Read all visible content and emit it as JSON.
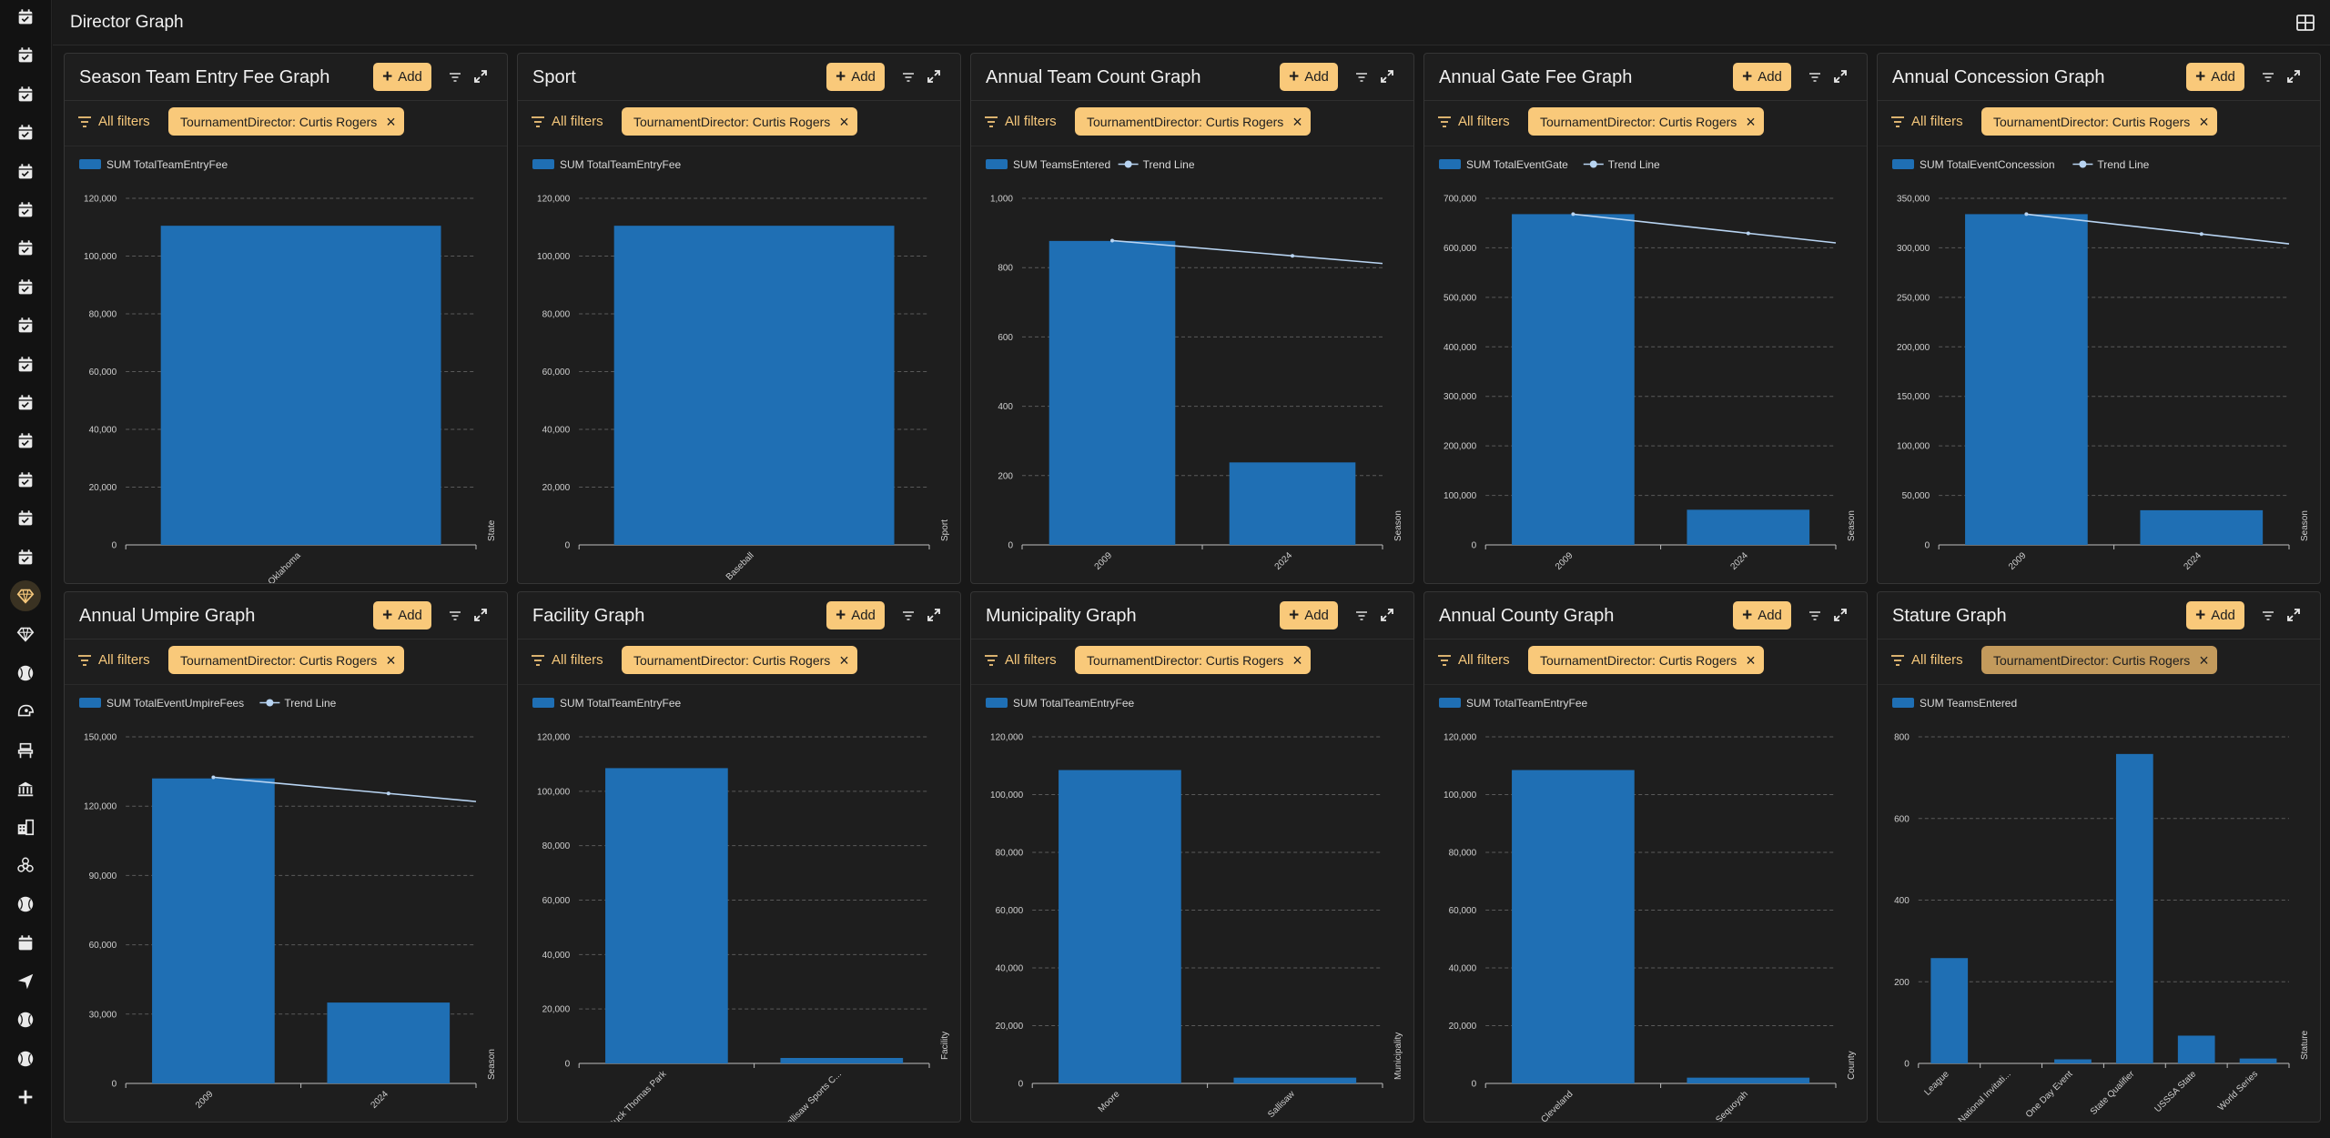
{
  "topbar": {
    "title": "Director Graph"
  },
  "common": {
    "add_label": "Add",
    "all_filters_label": "All filters"
  },
  "colors": {
    "bar": "#1f6fb4",
    "trend": "#b8d4f2",
    "accent": "#f9c97a",
    "background": "#181818"
  },
  "sidebar": {
    "icons": [
      "calendar-check-icon",
      "calendar-check-icon",
      "calendar-check-icon",
      "calendar-check-icon",
      "calendar-check-icon",
      "calendar-check-icon",
      "calendar-check-icon",
      "calendar-check-icon",
      "calendar-check-icon",
      "calendar-check-icon",
      "calendar-check-icon",
      "calendar-check-icon",
      "calendar-check-icon",
      "calendar-check-icon",
      "calendar-check-icon",
      "diamond-icon",
      "diamond-icon",
      "baseball-icon",
      "helmet-icon",
      "stadium-seat-icon",
      "bank-icon",
      "building-icon",
      "biohazard-icon",
      "baseball-icon",
      "calendar-icon",
      "send-icon",
      "baseball-icon",
      "baseball-icon",
      "plus-icon"
    ]
  },
  "panels": [
    {
      "title": "Season Team Entry Fee Graph",
      "filter": "TournamentDirector: Curtis Rogers",
      "chart_data": {
        "type": "bar",
        "categories": [
          "Oklahoma"
        ],
        "series": [
          {
            "name": "SUM TotalTeamEntryFee",
            "values": [
              110500
            ]
          }
        ],
        "xlabel": "State",
        "ylim": [
          0,
          120000
        ],
        "yticks": [
          "0",
          "20,000",
          "40,000",
          "60,000",
          "80,000",
          "100,000",
          "120,000"
        ],
        "trend": null
      }
    },
    {
      "title": "Sport",
      "filter": "TournamentDirector: Curtis Rogers",
      "chart_data": {
        "type": "bar",
        "categories": [
          "Baseball"
        ],
        "series": [
          {
            "name": "SUM TotalTeamEntryFee",
            "values": [
              110500
            ]
          }
        ],
        "xlabel": "Sport",
        "ylim": [
          0,
          120000
        ],
        "yticks": [
          "0",
          "20,000",
          "40,000",
          "60,000",
          "80,000",
          "100,000",
          "120,000"
        ],
        "trend": null
      }
    },
    {
      "title": "Annual Team Count Graph",
      "filter": "TournamentDirector: Curtis Rogers",
      "chart_data": {
        "type": "bar",
        "categories": [
          "2009",
          "2024"
        ],
        "series": [
          {
            "name": "SUM TeamsEntered",
            "values": [
              877,
              238
            ]
          }
        ],
        "xlabel": "Season",
        "ylim": [
          0,
          1000
        ],
        "yticks": [
          "0",
          "200",
          "400",
          "600",
          "800",
          "1,000"
        ],
        "trend": {
          "name": "Trend Line",
          "start": 878,
          "end": 812
        }
      }
    },
    {
      "title": "Annual Gate Fee Graph",
      "filter": "TournamentDirector: Curtis Rogers",
      "chart_data": {
        "type": "bar",
        "categories": [
          "2009",
          "2024"
        ],
        "series": [
          {
            "name": "SUM TotalEventGate",
            "values": [
              668000,
              71000
            ]
          }
        ],
        "xlabel": "Season",
        "ylim": [
          0,
          700000
        ],
        "yticks": [
          "0",
          "100,000",
          "200,000",
          "300,000",
          "400,000",
          "500,000",
          "600,000",
          "700,000"
        ],
        "trend": {
          "name": "Trend Line",
          "start": 668000,
          "end": 610000
        }
      }
    },
    {
      "title": "Annual Concession Graph",
      "filter": "TournamentDirector: Curtis Rogers",
      "chart_data": {
        "type": "bar",
        "categories": [
          "2009",
          "2024"
        ],
        "series": [
          {
            "name": "SUM TotalEventConcession",
            "values": [
              334000,
              35000
            ]
          }
        ],
        "xlabel": "Season",
        "ylim": [
          0,
          350000
        ],
        "yticks": [
          "0",
          "50,000",
          "100,000",
          "150,000",
          "200,000",
          "250,000",
          "300,000",
          "350,000"
        ],
        "trend": {
          "name": "Trend Line",
          "start": 334000,
          "end": 304000
        }
      }
    },
    {
      "title": "Annual Umpire Graph",
      "filter": "TournamentDirector: Curtis Rogers",
      "chart_data": {
        "type": "bar",
        "categories": [
          "2009",
          "2024"
        ],
        "series": [
          {
            "name": "SUM TotalEventUmpireFees",
            "values": [
              132000,
              35000
            ]
          }
        ],
        "xlabel": "Season",
        "ylim": [
          0,
          150000
        ],
        "yticks": [
          "0",
          "30,000",
          "60,000",
          "90,000",
          "120,000",
          "150,000"
        ],
        "trend": {
          "name": "Trend Line",
          "start": 132500,
          "end": 122000
        }
      }
    },
    {
      "title": "Facility Graph",
      "filter": "TournamentDirector: Curtis Rogers",
      "chart_data": {
        "type": "bar",
        "categories": [
          "Buck Thomas Park",
          "Sallisaw Sports C..."
        ],
        "series": [
          {
            "name": "SUM TotalTeamEntryFee",
            "values": [
              108500,
              2000
            ]
          }
        ],
        "xlabel": "Facility",
        "ylim": [
          0,
          120000
        ],
        "yticks": [
          "0",
          "20,000",
          "40,000",
          "60,000",
          "80,000",
          "100,000",
          "120,000"
        ],
        "trend": null
      }
    },
    {
      "title": "Municipality Graph",
      "filter": "TournamentDirector: Curtis Rogers",
      "chart_data": {
        "type": "bar",
        "categories": [
          "Moore",
          "Sallisaw"
        ],
        "series": [
          {
            "name": "SUM TotalTeamEntryFee",
            "values": [
              108500,
              2000
            ]
          }
        ],
        "xlabel": "Municipality",
        "ylim": [
          0,
          120000
        ],
        "yticks": [
          "0",
          "20,000",
          "40,000",
          "60,000",
          "80,000",
          "100,000",
          "120,000"
        ],
        "trend": null
      }
    },
    {
      "title": "Annual County Graph",
      "filter": "TournamentDirector: Curtis Rogers",
      "chart_data": {
        "type": "bar",
        "categories": [
          "Cleveland",
          "Sequoyah"
        ],
        "series": [
          {
            "name": "SUM TotalTeamEntryFee",
            "values": [
              108500,
              2000
            ]
          }
        ],
        "xlabel": "County",
        "ylim": [
          0,
          120000
        ],
        "yticks": [
          "0",
          "20,000",
          "40,000",
          "60,000",
          "80,000",
          "100,000",
          "120,000"
        ],
        "trend": null
      }
    },
    {
      "title": "Stature Graph",
      "filter": "TournamentDirector: Curtis Rogers",
      "chart_data": {
        "type": "bar",
        "categories": [
          "League",
          "National Invitati...",
          "One Day Event",
          "State Qualifier",
          "USSSA State",
          "World Series"
        ],
        "series": [
          {
            "name": "SUM TeamsEntered",
            "values": [
              258,
              0,
              10,
              758,
              68,
              12
            ]
          }
        ],
        "xlabel": "Stature",
        "ylim": [
          0,
          800
        ],
        "yticks": [
          "0",
          "200",
          "400",
          "600",
          "800"
        ],
        "trend": null
      }
    }
  ]
}
